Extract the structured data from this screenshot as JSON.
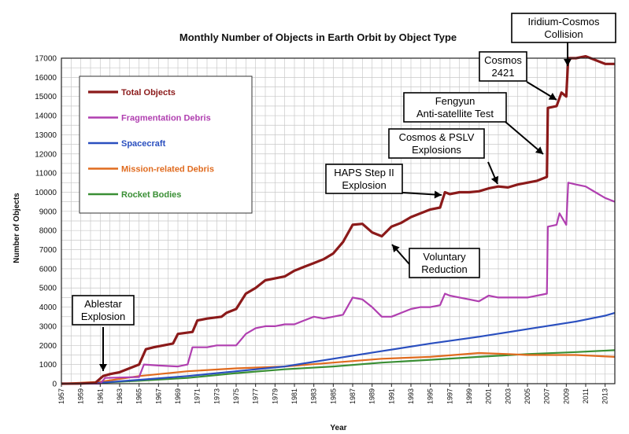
{
  "chart_data": {
    "type": "line",
    "title": "Monthly Number of Objects in Earth Orbit by Object Type",
    "xlabel": "Year",
    "ylabel": "Number of Objects",
    "xlim": [
      1957,
      2014
    ],
    "ylim": [
      0,
      17000
    ],
    "yticks": [
      0,
      1000,
      2000,
      3000,
      4000,
      5000,
      6000,
      7000,
      8000,
      9000,
      10000,
      11000,
      12000,
      13000,
      14000,
      15000,
      16000,
      17000
    ],
    "xticks": [
      "1957",
      "1959",
      "1961",
      "1963",
      "1965",
      "1967",
      "1969",
      "1971",
      "1973",
      "1975",
      "1977",
      "1979",
      "1981",
      "1983",
      "1985",
      "1987",
      "1989",
      "1991",
      "1993",
      "1995",
      "1997",
      "1999",
      "2001",
      "2003",
      "2005",
      "2007",
      "2009",
      "2011",
      "2013"
    ],
    "grid": true,
    "legend_position": "top-left",
    "series": [
      {
        "name": "Total Objects",
        "color": "#8b1a1a",
        "points": [
          [
            1957,
            0
          ],
          [
            1959,
            10
          ],
          [
            1960.5,
            50
          ],
          [
            1961.3,
            400
          ],
          [
            1962,
            500
          ],
          [
            1963,
            600
          ],
          [
            1964,
            800
          ],
          [
            1965,
            1000
          ],
          [
            1965.7,
            1800
          ],
          [
            1966.5,
            1900
          ],
          [
            1967.5,
            2000
          ],
          [
            1968.5,
            2100
          ],
          [
            1969,
            2600
          ],
          [
            1970.5,
            2700
          ],
          [
            1971,
            3300
          ],
          [
            1972,
            3400
          ],
          [
            1973.5,
            3500
          ],
          [
            1974,
            3700
          ],
          [
            1975,
            3900
          ],
          [
            1976,
            4700
          ],
          [
            1977,
            5000
          ],
          [
            1978,
            5400
          ],
          [
            1979,
            5500
          ],
          [
            1980,
            5600
          ],
          [
            1981,
            5900
          ],
          [
            1982,
            6100
          ],
          [
            1983,
            6300
          ],
          [
            1984,
            6500
          ],
          [
            1985,
            6800
          ],
          [
            1986,
            7400
          ],
          [
            1987,
            8300
          ],
          [
            1988,
            8350
          ],
          [
            1989,
            7900
          ],
          [
            1990,
            7700
          ],
          [
            1991,
            8200
          ],
          [
            1992,
            8400
          ],
          [
            1993,
            8700
          ],
          [
            1994,
            8900
          ],
          [
            1995,
            9100
          ],
          [
            1996,
            9200
          ],
          [
            1996.5,
            10000
          ],
          [
            1997,
            9900
          ],
          [
            1998,
            10000
          ],
          [
            1999,
            10000
          ],
          [
            2000,
            10050
          ],
          [
            2001,
            10200
          ],
          [
            2002,
            10300
          ],
          [
            2003,
            10250
          ],
          [
            2004,
            10400
          ],
          [
            2005,
            10500
          ],
          [
            2006,
            10600
          ],
          [
            2007,
            10800
          ],
          [
            2007.1,
            14400
          ],
          [
            2008,
            14500
          ],
          [
            2008.5,
            15200
          ],
          [
            2009,
            15000
          ],
          [
            2009.2,
            17000
          ],
          [
            2010,
            17000
          ],
          [
            2011,
            17100
          ],
          [
            2012,
            16900
          ],
          [
            2013,
            16700
          ],
          [
            2014,
            16700
          ]
        ]
      },
      {
        "name": "Fragmentation Debris",
        "color": "#b03fb0",
        "points": [
          [
            1957,
            0
          ],
          [
            1961,
            0
          ],
          [
            1961.5,
            300
          ],
          [
            1963,
            320
          ],
          [
            1965,
            350
          ],
          [
            1965.5,
            1000
          ],
          [
            1967,
            950
          ],
          [
            1969,
            900
          ],
          [
            1970,
            1000
          ],
          [
            1970.5,
            1900
          ],
          [
            1972,
            1900
          ],
          [
            1973,
            2000
          ],
          [
            1974,
            2000
          ],
          [
            1975,
            2000
          ],
          [
            1976,
            2600
          ],
          [
            1977,
            2900
          ],
          [
            1978,
            3000
          ],
          [
            1979,
            3000
          ],
          [
            1980,
            3100
          ],
          [
            1981,
            3100
          ],
          [
            1982,
            3300
          ],
          [
            1983,
            3500
          ],
          [
            1984,
            3400
          ],
          [
            1985,
            3500
          ],
          [
            1986,
            3600
          ],
          [
            1987,
            4500
          ],
          [
            1988,
            4400
          ],
          [
            1989,
            4000
          ],
          [
            1990,
            3500
          ],
          [
            1991,
            3500
          ],
          [
            1992,
            3700
          ],
          [
            1993,
            3900
          ],
          [
            1994,
            4000
          ],
          [
            1995,
            4000
          ],
          [
            1996,
            4100
          ],
          [
            1996.5,
            4700
          ],
          [
            1997,
            4600
          ],
          [
            1998,
            4500
          ],
          [
            1999,
            4400
          ],
          [
            2000,
            4300
          ],
          [
            2001,
            4600
          ],
          [
            2002,
            4500
          ],
          [
            2003,
            4500
          ],
          [
            2004,
            4500
          ],
          [
            2005,
            4500
          ],
          [
            2006,
            4600
          ],
          [
            2007,
            4700
          ],
          [
            2007.1,
            8200
          ],
          [
            2008,
            8300
          ],
          [
            2008.3,
            8900
          ],
          [
            2009,
            8300
          ],
          [
            2009.2,
            10500
          ],
          [
            2010,
            10400
          ],
          [
            2011,
            10300
          ],
          [
            2012,
            10000
          ],
          [
            2013,
            9700
          ],
          [
            2014,
            9500
          ]
        ]
      },
      {
        "name": "Spacecraft",
        "color": "#2a4fbf",
        "points": [
          [
            1957,
            0
          ],
          [
            1961,
            50
          ],
          [
            1965,
            200
          ],
          [
            1970,
            400
          ],
          [
            1975,
            650
          ],
          [
            1980,
            900
          ],
          [
            1985,
            1300
          ],
          [
            1990,
            1700
          ],
          [
            1995,
            2100
          ],
          [
            2000,
            2450
          ],
          [
            2005,
            2850
          ],
          [
            2010,
            3250
          ],
          [
            2013,
            3550
          ],
          [
            2014,
            3700
          ]
        ]
      },
      {
        "name": "Mission-related Debris",
        "color": "#e06b1f",
        "points": [
          [
            1957,
            0
          ],
          [
            1961,
            100
          ],
          [
            1965,
            400
          ],
          [
            1970,
            650
          ],
          [
            1975,
            800
          ],
          [
            1980,
            900
          ],
          [
            1985,
            1100
          ],
          [
            1990,
            1300
          ],
          [
            1995,
            1400
          ],
          [
            2000,
            1600
          ],
          [
            2003,
            1550
          ],
          [
            2005,
            1500
          ],
          [
            2010,
            1500
          ],
          [
            2014,
            1400
          ]
        ]
      },
      {
        "name": "Rocket Bodies",
        "color": "#3a8f35",
        "points": [
          [
            1957,
            0
          ],
          [
            1961,
            50
          ],
          [
            1965,
            150
          ],
          [
            1970,
            300
          ],
          [
            1975,
            550
          ],
          [
            1980,
            750
          ],
          [
            1985,
            900
          ],
          [
            1990,
            1100
          ],
          [
            1995,
            1250
          ],
          [
            2000,
            1400
          ],
          [
            2005,
            1550
          ],
          [
            2010,
            1650
          ],
          [
            2014,
            1750
          ]
        ]
      }
    ],
    "annotations": [
      {
        "id": "ablestar",
        "lines": [
          "Ablestar",
          "Explosion"
        ]
      },
      {
        "id": "haps",
        "lines": [
          "HAPS Step II",
          "Explosion"
        ]
      },
      {
        "id": "cosmos-pslv",
        "lines": [
          "Cosmos & PSLV",
          "Explosions"
        ]
      },
      {
        "id": "fengyun",
        "lines": [
          "Fengyun",
          "Anti-satellite Test"
        ]
      },
      {
        "id": "cosmos2421",
        "lines": [
          "Cosmos",
          "2421"
        ]
      },
      {
        "id": "iridium",
        "lines": [
          "Iridium-Cosmos",
          "Collision"
        ]
      },
      {
        "id": "voluntary",
        "lines": [
          "Voluntary",
          "Reduction"
        ]
      }
    ]
  }
}
